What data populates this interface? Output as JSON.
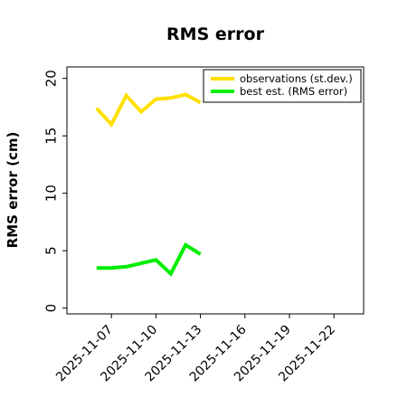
{
  "chart_data": {
    "type": "line",
    "title": "RMS error",
    "xlabel": "",
    "ylabel": "RMS error (cm)",
    "x_ticks": [
      "2025-11-07",
      "2025-11-10",
      "2025-11-13",
      "2025-11-16",
      "2025-11-19",
      "2025-11-22"
    ],
    "highlight_tick": "2025-11-13",
    "highlight_color": "#228B22",
    "y_ticks": [
      0,
      5,
      10,
      15,
      20
    ],
    "xlim": [
      "2025-11-04",
      "2025-11-24"
    ],
    "ylim": [
      -0.5,
      21
    ],
    "grid": false,
    "legend_position": "top-right",
    "series": [
      {
        "name": "observations (st.dev.)",
        "color": "#FFE000",
        "points": [
          [
            "2025-11-06",
            17.4
          ],
          [
            "2025-11-07",
            16.0
          ],
          [
            "2025-11-08",
            18.5
          ],
          [
            "2025-11-09",
            17.1
          ],
          [
            "2025-11-10",
            18.2
          ],
          [
            "2025-11-11",
            18.3
          ],
          [
            "2025-11-12",
            18.6
          ],
          [
            "2025-11-13",
            17.9
          ]
        ]
      },
      {
        "name": "best est. (RMS error)",
        "color": "#00EE00",
        "points": [
          [
            "2025-11-06",
            3.5
          ],
          [
            "2025-11-07",
            3.5
          ],
          [
            "2025-11-08",
            3.6
          ],
          [
            "2025-11-09",
            3.9
          ],
          [
            "2025-11-10",
            4.2
          ],
          [
            "2025-11-11",
            3.0
          ],
          [
            "2025-11-12",
            5.5
          ],
          [
            "2025-11-13",
            4.7
          ]
        ]
      }
    ]
  }
}
